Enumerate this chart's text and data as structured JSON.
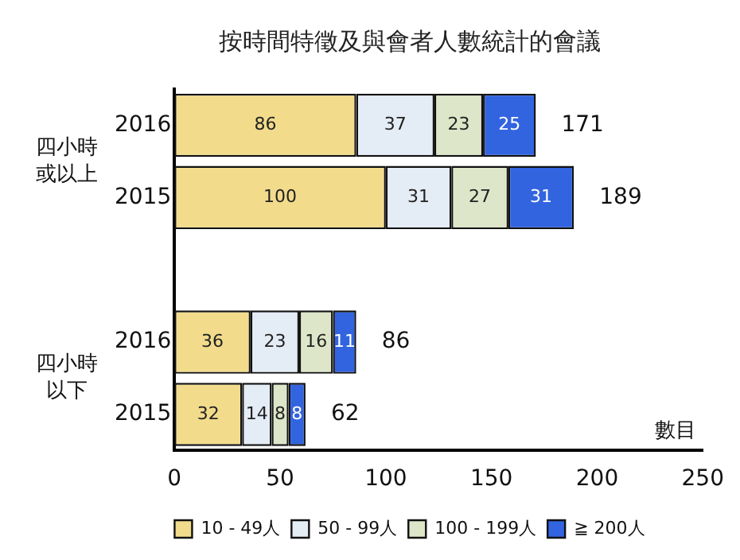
{
  "chart_data": {
    "type": "bar",
    "orientation": "horizontal",
    "stacked": true,
    "title": "按時間特徵及與會者人數統計的會議",
    "xlabel": "數目",
    "categories": [
      "2016",
      "2015",
      null,
      "2016",
      "2015"
    ],
    "series": [
      {
        "name": "10 - 49人",
        "color": "#f2dc8c",
        "values": [
          86,
          100,
          null,
          36,
          32
        ]
      },
      {
        "name": "50 - 99人",
        "color": "#e4ecf6",
        "values": [
          37,
          31,
          null,
          23,
          14
        ]
      },
      {
        "name": "100 - 199人",
        "color": "#dde6c8",
        "values": [
          23,
          27,
          null,
          16,
          8
        ]
      },
      {
        "name": "≧ 200人",
        "color": "#3264e0",
        "values": [
          25,
          31,
          null,
          11,
          8
        ]
      }
    ],
    "totals": [
      "171",
      "189",
      null,
      "86",
      "62"
    ],
    "annotations": [
      "四小時或以上",
      "四小時以下"
    ],
    "data_labels": true,
    "xlim": [
      0,
      250
    ],
    "xticks": [
      0,
      50,
      100,
      150,
      200,
      250
    ],
    "grid": false,
    "legend": "bottom"
  }
}
